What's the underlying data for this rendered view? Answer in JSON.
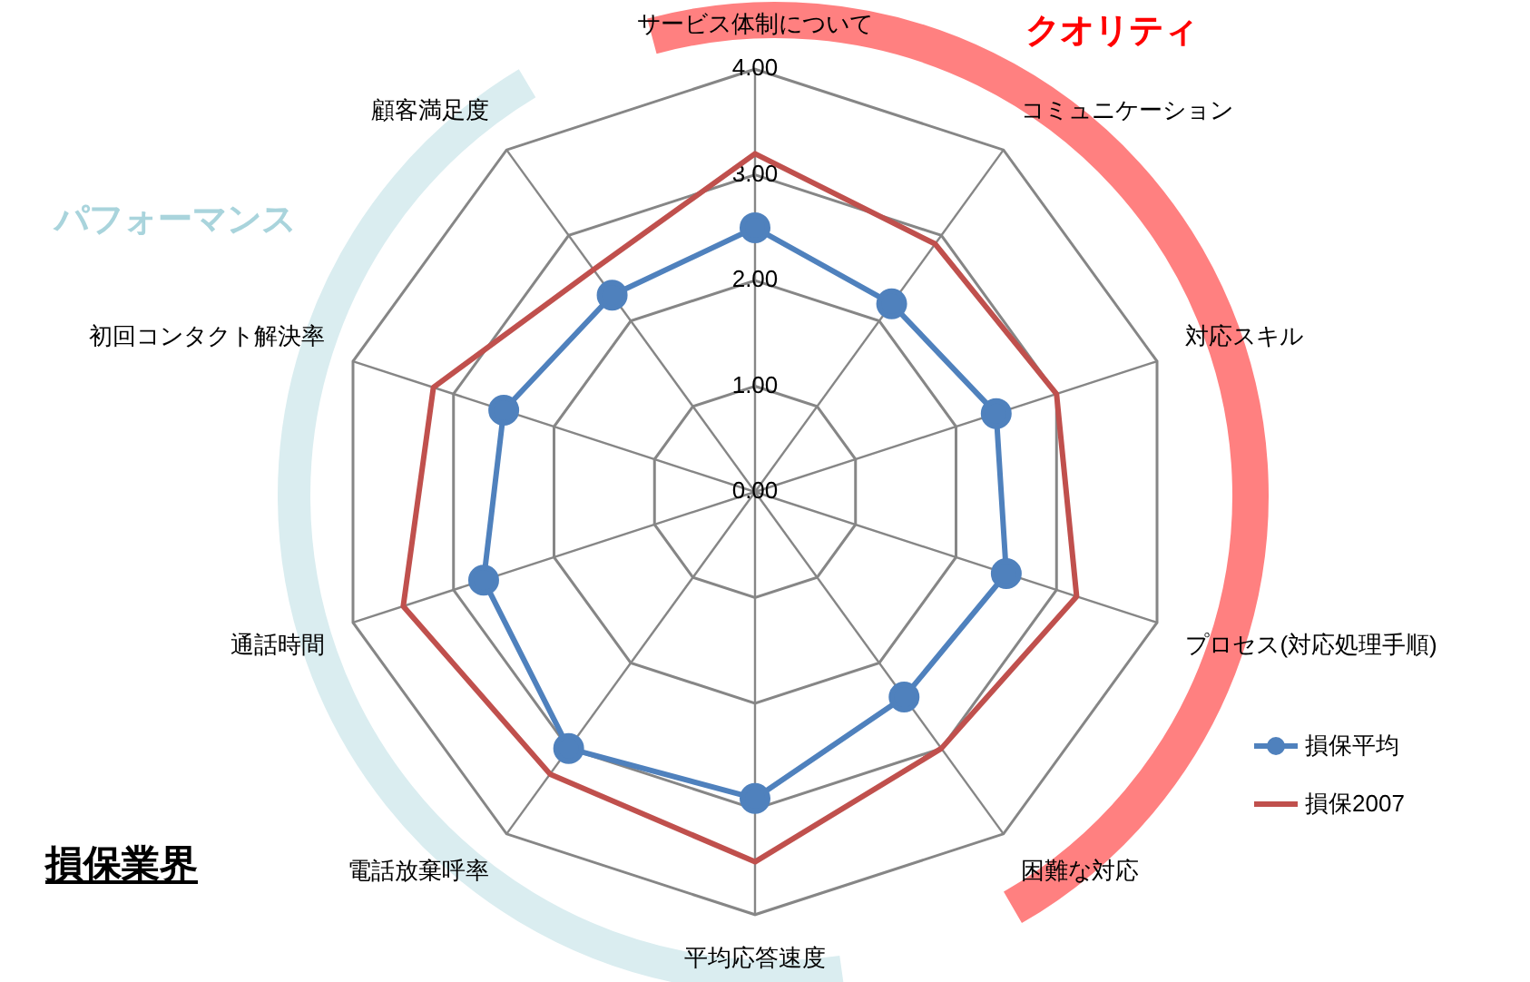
{
  "chart_data": {
    "type": "radar",
    "categories": [
      "サービス体制について",
      "コミュニケーション",
      "対応スキル",
      "プロセス(対応処理手順)",
      "困難な対応",
      "平均応答速度",
      "電話放棄呼率",
      "通話時間",
      "初回コンタクト解決率",
      "顧客満足度"
    ],
    "series": [
      {
        "name": "損保平均",
        "color": "#4f81bd",
        "values": [
          2.5,
          2.2,
          2.4,
          2.5,
          2.4,
          2.9,
          3.0,
          2.7,
          2.5,
          2.3
        ],
        "marker": "circle"
      },
      {
        "name": "損保2007",
        "color": "#c0504d",
        "values": [
          3.2,
          2.9,
          3.0,
          3.2,
          3.0,
          3.5,
          3.3,
          3.5,
          3.2,
          2.6
        ],
        "marker": "none"
      }
    ],
    "ylim": [
      0,
      4
    ],
    "yticks": [
      {
        "value": 0,
        "label": "0.00"
      },
      {
        "value": 1,
        "label": "1.00"
      },
      {
        "value": 2,
        "label": "2.00"
      },
      {
        "value": 3,
        "label": "3.00"
      },
      {
        "value": 4,
        "label": "4.00"
      }
    ],
    "grid": true,
    "legend": "bottom right",
    "annotations": [
      "クオリティ",
      "パフォーマンス",
      "損保業界"
    ]
  }
}
